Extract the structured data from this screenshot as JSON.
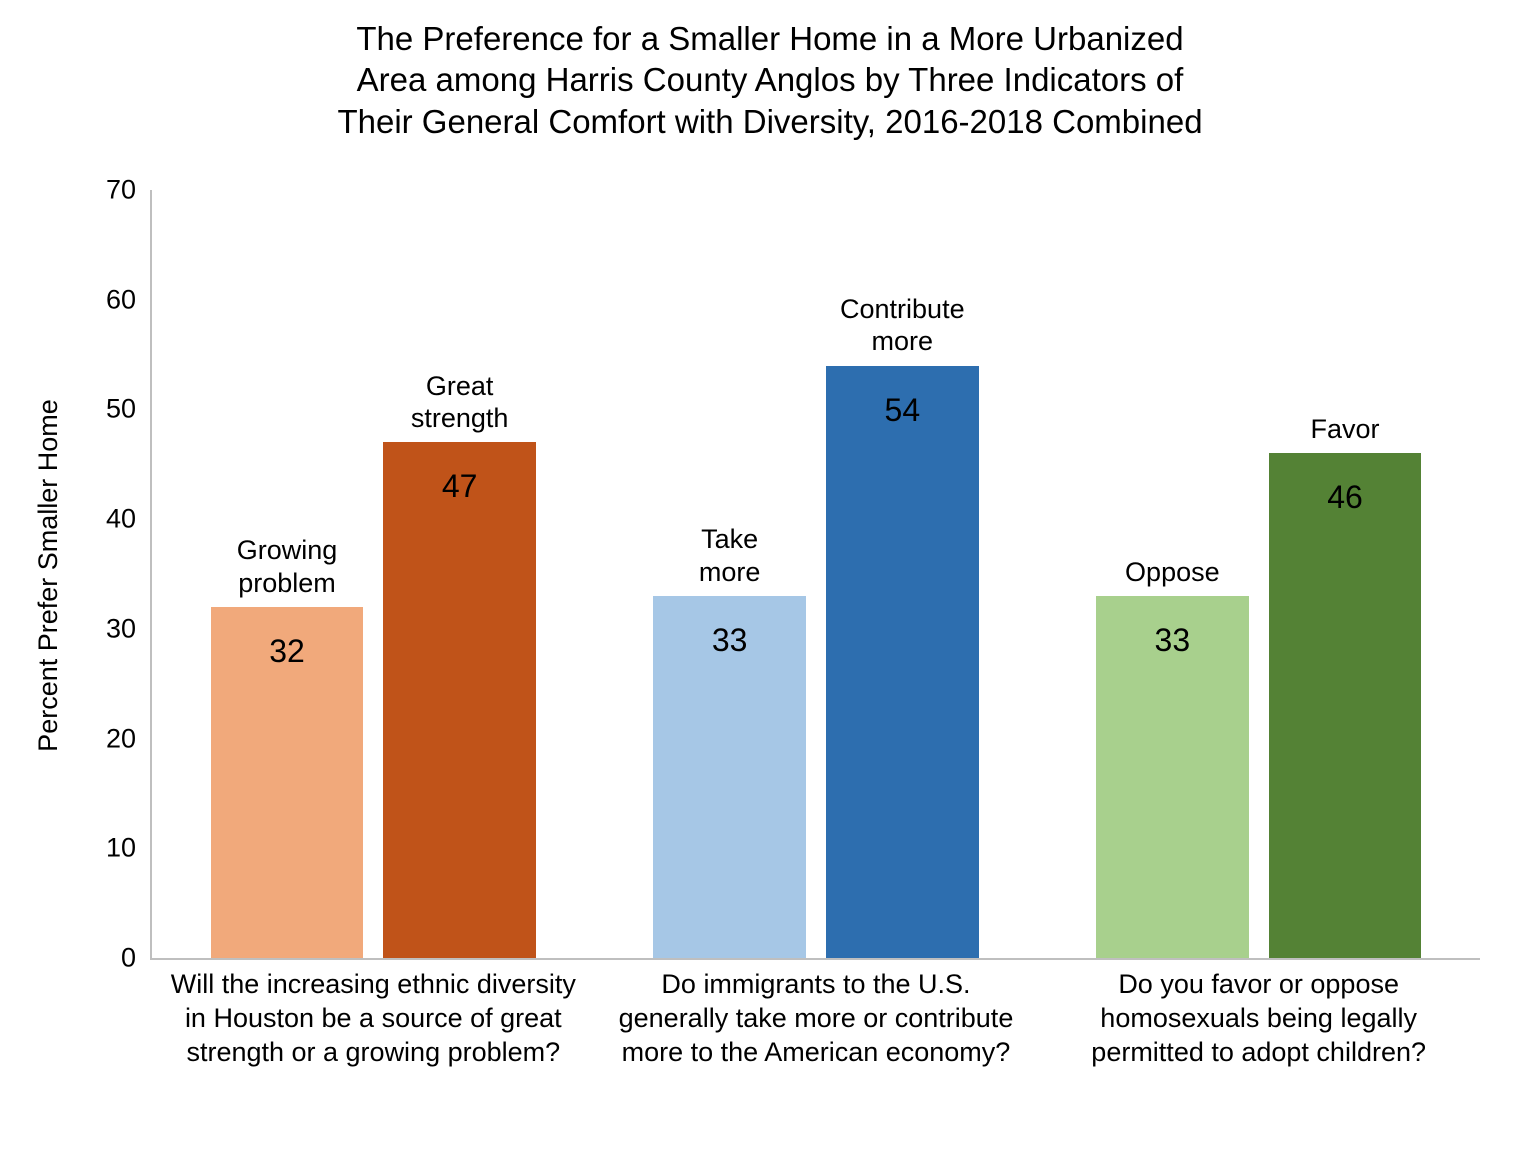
{
  "chart": {
    "type": "bar",
    "title": "The Preference for a Smaller Home in a More Urbanized\nArea among Harris County Anglos by Three Indicators of\nTheir General Comfort with Diversity, 2016-2018 Combined",
    "title_fontsize": 33,
    "ylabel": "Percent Prefer Smaller Home",
    "ylabel_fontsize": 27,
    "ylim_max": 70,
    "yticks": [
      0,
      10,
      20,
      30,
      40,
      50,
      60,
      70
    ],
    "ytick_fontsize": 27,
    "background_color": "#ffffff",
    "axis_color": "#bfbfbf",
    "text_color": "#000000",
    "value_fontsize": 32,
    "toplabel_fontsize": 27,
    "xcat_fontsize": 27,
    "bar_width_pct": 11.5,
    "groups": [
      {
        "x_label": "Will the increasing ethnic diversity in Houston be a source of great strength or a growing problem?",
        "bars": [
          {
            "top_label": "Growing\nproblem",
            "value": 32,
            "color": "#f1a97b"
          },
          {
            "top_label": "Great\nstrength",
            "value": 47,
            "color": "#c05319"
          }
        ]
      },
      {
        "x_label": "Do immigrants to the U.S. generally take more or contribute more to the American economy?",
        "bars": [
          {
            "top_label": "Take\nmore",
            "value": 33,
            "color": "#a6c7e6"
          },
          {
            "top_label": "Contribute\nmore",
            "value": 54,
            "color": "#2d6eaf"
          }
        ]
      },
      {
        "x_label": "Do you favor or oppose homosexuals being legally permitted to adopt children?",
        "bars": [
          {
            "top_label": "Oppose",
            "value": 33,
            "color": "#a8d08d"
          },
          {
            "top_label": "Favor",
            "value": 46,
            "color": "#548235"
          }
        ]
      }
    ]
  }
}
